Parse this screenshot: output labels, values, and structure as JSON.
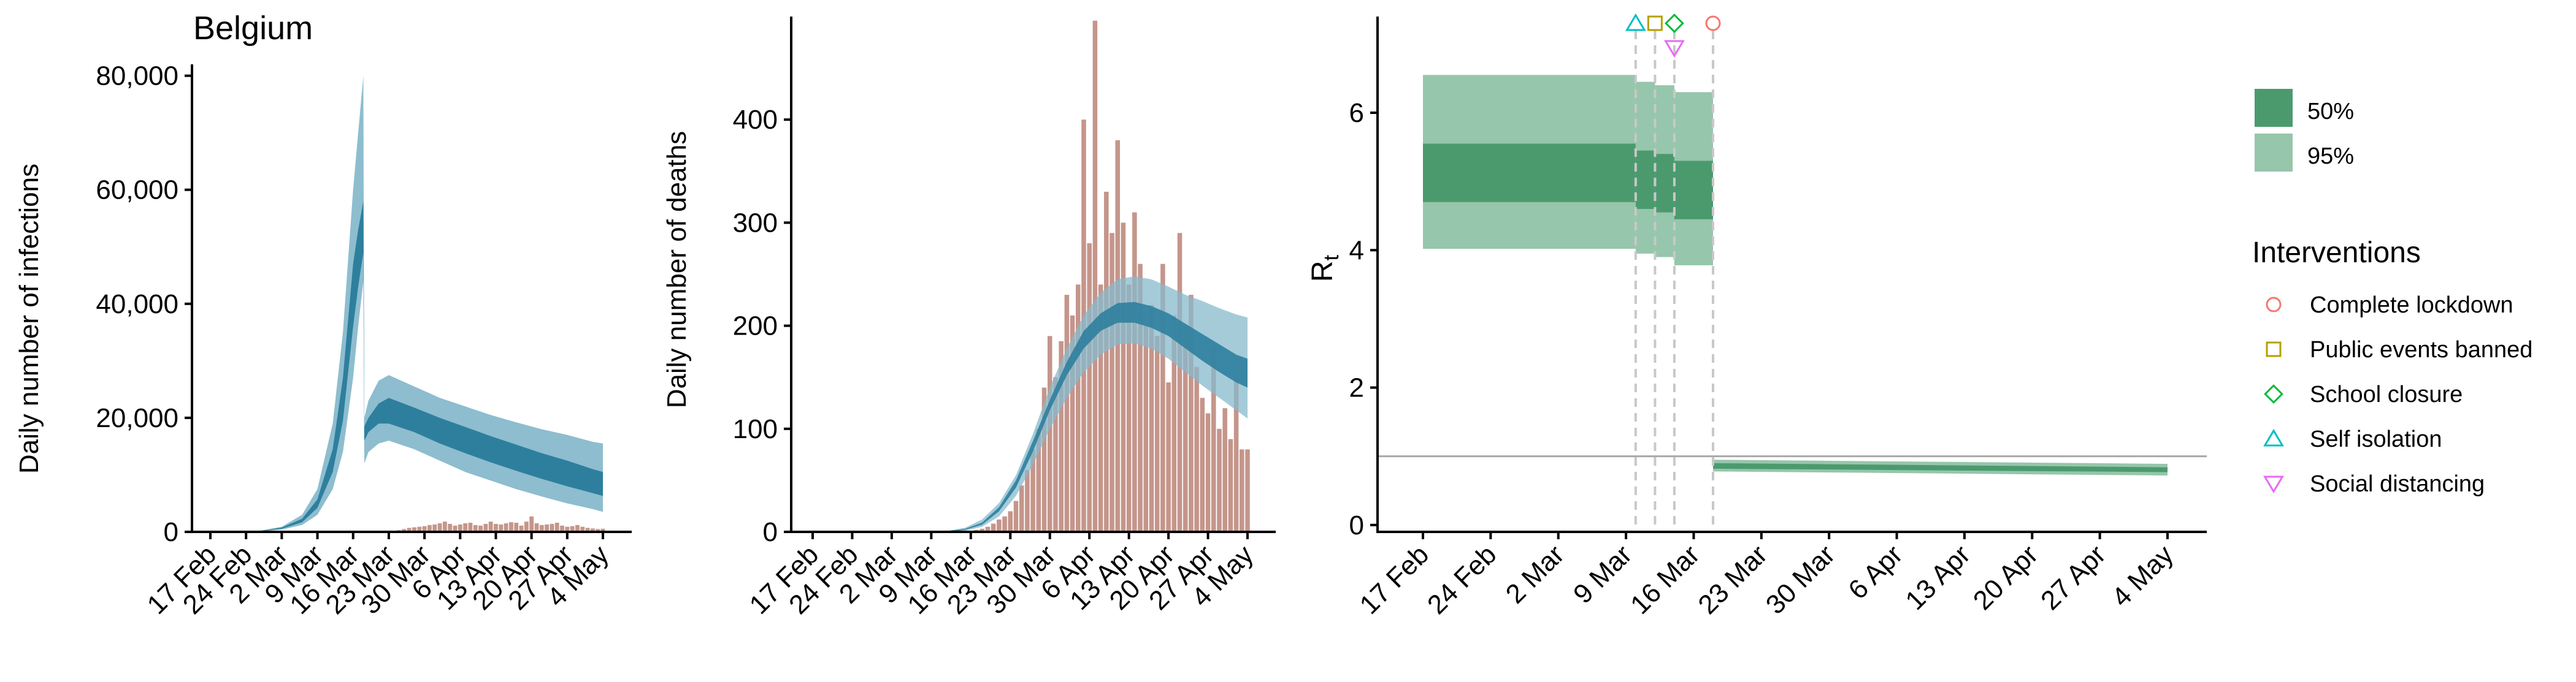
{
  "colors": {
    "infections_band_50": "#2e7f9d",
    "infections_band_95": "#87b9cc",
    "deaths_bars": "#c5958b",
    "rt_band_50": "#4b9a6e",
    "rt_band_95": "#96c6ab",
    "lockdown": "#f8766d",
    "public_events": "#b79f00",
    "school": "#00ba38",
    "self_isolation": "#00bfc4",
    "social_distancing": "#e76bf3"
  },
  "chart_data": [
    {
      "type": "area",
      "title": "Belgium",
      "ylabel": "Daily number of infections",
      "xlabel": "",
      "ylim": [
        0,
        82000
      ],
      "y_ticks": [
        0,
        20000,
        40000,
        60000,
        80000
      ],
      "y_tick_labels": [
        "0",
        "20,000",
        "40,000",
        "60,000",
        "80,000"
      ],
      "x_tick_labels": [
        "17 Feb",
        "24 Feb",
        "2 Mar",
        "9 Mar",
        "16 Mar",
        "23 Mar",
        "30 Mar",
        "6 Apr",
        "13 Apr",
        "20 Apr",
        "27 Apr",
        "4 May"
      ],
      "x_tick_day_index": [
        0,
        7,
        14,
        21,
        28,
        35,
        42,
        49,
        56,
        63,
        70,
        77
      ],
      "series": [
        {
          "band": "95%",
          "day_index": [
            0,
            5,
            10,
            14,
            18,
            21,
            24,
            26,
            28,
            29,
            30,
            30.2,
            31,
            33,
            35,
            40,
            45,
            50,
            55,
            60,
            65,
            70,
            75,
            77
          ],
          "lower": [
            0,
            20,
            100,
            400,
            1200,
            3000,
            7500,
            14000,
            27000,
            36000,
            44000,
            12000,
            14000,
            15500,
            16000,
            14500,
            12500,
            10500,
            9000,
            7500,
            6200,
            5000,
            4000,
            3500
          ],
          "upper": [
            0,
            40,
            250,
            900,
            3000,
            7500,
            19000,
            35000,
            60000,
            70000,
            80000,
            20000,
            23000,
            26500,
            27500,
            25500,
            23500,
            22000,
            20500,
            19200,
            18000,
            17000,
            15800,
            15500
          ]
        },
        {
          "band": "50%",
          "day_index": [
            0,
            5,
            10,
            14,
            18,
            21,
            24,
            26,
            28,
            29,
            30,
            30.2,
            31,
            33,
            35,
            40,
            45,
            50,
            55,
            60,
            65,
            70,
            75,
            77
          ],
          "lower": [
            0,
            25,
            150,
            550,
            1700,
            4200,
            10500,
            19500,
            36000,
            43000,
            49000,
            16000,
            17500,
            19000,
            19000,
            17500,
            15500,
            13800,
            12200,
            10700,
            9300,
            8000,
            6800,
            6300
          ],
          "upper": [
            0,
            32,
            200,
            750,
            2300,
            5700,
            14500,
            27000,
            47000,
            53000,
            58000,
            18500,
            20000,
            22500,
            23500,
            21800,
            20000,
            18400,
            16800,
            15300,
            13800,
            12500,
            11000,
            10500
          ]
        }
      ],
      "observed_cases_day_index": [
        35,
        36,
        37,
        38,
        39,
        40,
        41,
        42,
        43,
        44,
        45,
        46,
        47,
        48,
        49,
        50,
        51,
        52,
        53,
        54,
        55,
        56,
        57,
        58,
        59,
        60,
        61,
        62,
        63,
        64,
        65,
        66,
        67,
        68,
        69,
        70,
        71,
        72,
        73,
        74,
        75,
        76,
        77
      ],
      "observed_cases": [
        100,
        200,
        300,
        500,
        700,
        800,
        900,
        1000,
        1200,
        1300,
        1500,
        1800,
        1400,
        1100,
        1300,
        1500,
        1600,
        1200,
        1100,
        1400,
        1800,
        1400,
        1300,
        1500,
        1700,
        1600,
        1100,
        1800,
        2700,
        1500,
        1200,
        1300,
        1400,
        1600,
        1100,
        900,
        1000,
        1200,
        900,
        700,
        600,
        500,
        550
      ]
    },
    {
      "type": "bar",
      "ylabel": "Daily number of deaths",
      "xlabel": "",
      "ylim": [
        0,
        500
      ],
      "y_ticks": [
        0,
        100,
        200,
        300,
        400
      ],
      "y_tick_labels": [
        "0",
        "100",
        "200",
        "300",
        "400"
      ],
      "x_tick_labels": [
        "17 Feb",
        "24 Feb",
        "2 Mar",
        "9 Mar",
        "16 Mar",
        "23 Mar",
        "30 Mar",
        "6 Apr",
        "13 Apr",
        "20 Apr",
        "27 Apr",
        "4 May"
      ],
      "x_tick_day_index": [
        0,
        7,
        14,
        21,
        28,
        35,
        42,
        49,
        56,
        63,
        70,
        77
      ],
      "bars_day_index": [
        28,
        29,
        30,
        31,
        32,
        33,
        34,
        35,
        36,
        37,
        38,
        39,
        40,
        41,
        42,
        43,
        44,
        45,
        46,
        47,
        48,
        49,
        50,
        51,
        52,
        53,
        54,
        55,
        56,
        57,
        58,
        59,
        60,
        61,
        62,
        63,
        64,
        65,
        66,
        67,
        68,
        69,
        70,
        71,
        72,
        73,
        74,
        75,
        76,
        77
      ],
      "bars": [
        1,
        2,
        3,
        5,
        8,
        12,
        15,
        20,
        30,
        45,
        60,
        80,
        100,
        140,
        190,
        150,
        185,
        230,
        210,
        240,
        400,
        280,
        496,
        240,
        330,
        290,
        380,
        300,
        240,
        310,
        260,
        200,
        220,
        190,
        260,
        145,
        210,
        290,
        200,
        230,
        160,
        130,
        115,
        180,
        100,
        120,
        90,
        150,
        80,
        80
      ],
      "series": [
        {
          "band": "95%",
          "day_index": [
            0,
            5,
            10,
            14,
            18,
            21,
            24,
            27,
            30,
            33,
            36,
            39,
            42,
            45,
            48,
            51,
            54,
            57,
            60,
            63,
            66,
            69,
            72,
            75,
            77
          ],
          "lower": [
            0,
            0,
            0,
            0,
            0,
            0,
            0,
            1,
            5,
            15,
            35,
            65,
            100,
            130,
            155,
            172,
            182,
            183,
            178,
            168,
            155,
            142,
            130,
            118,
            110
          ],
          "upper": [
            0,
            0,
            0,
            0,
            0,
            0,
            1,
            4,
            12,
            28,
            55,
            95,
            140,
            178,
            210,
            232,
            245,
            248,
            245,
            238,
            230,
            224,
            217,
            211,
            208
          ]
        },
        {
          "band": "50%",
          "day_index": [
            0,
            5,
            10,
            14,
            18,
            21,
            24,
            27,
            30,
            33,
            36,
            39,
            42,
            45,
            48,
            51,
            54,
            57,
            60,
            63,
            66,
            69,
            72,
            75,
            77
          ],
          "lower": [
            0,
            0,
            0,
            0,
            0,
            0,
            0,
            2,
            7,
            20,
            43,
            78,
            118,
            152,
            178,
            195,
            203,
            203,
            198,
            190,
            178,
            166,
            155,
            145,
            140
          ],
          "upper": [
            0,
            0,
            0,
            0,
            0,
            0,
            1,
            3,
            9,
            24,
            50,
            88,
            128,
            165,
            195,
            212,
            222,
            223,
            219,
            212,
            202,
            192,
            182,
            172,
            168
          ]
        }
      ]
    },
    {
      "type": "area",
      "ylabel": "Rt",
      "ylabel_main": "R",
      "ylabel_sub": "t",
      "xlabel": "",
      "ylim": [
        -0.1,
        7.4
      ],
      "y_ticks": [
        0,
        2,
        4,
        6
      ],
      "y_tick_labels": [
        "0",
        "2",
        "4",
        "6"
      ],
      "reference_line": 1,
      "x_tick_labels": [
        "17 Feb",
        "24 Feb",
        "2 Mar",
        "9 Mar",
        "16 Mar",
        "23 Mar",
        "30 Mar",
        "6 Apr",
        "13 Apr",
        "20 Apr",
        "27 Apr",
        "4 May"
      ],
      "x_tick_day_index": [
        0,
        7,
        14,
        21,
        28,
        35,
        42,
        49,
        56,
        63,
        70,
        77
      ],
      "segments": [
        {
          "start": 0,
          "end": 22,
          "lo95": 4.02,
          "hi95": 6.55,
          "lo50": 4.7,
          "hi50": 5.55
        },
        {
          "start": 22,
          "end": 24,
          "lo95": 3.95,
          "hi95": 6.45,
          "lo50": 4.6,
          "hi50": 5.45
        },
        {
          "start": 24,
          "end": 26,
          "lo95": 3.9,
          "hi95": 6.4,
          "lo50": 4.55,
          "hi50": 5.4
        },
        {
          "start": 26,
          "end": 30,
          "lo95": 3.78,
          "hi95": 6.3,
          "lo50": 4.45,
          "hi50": 5.3
        }
      ],
      "post_lockdown": {
        "start": 30,
        "end": 77,
        "start_lo95": 0.78,
        "start_hi95": 0.95,
        "end_lo95": 0.72,
        "end_hi95": 0.89,
        "start_lo50": 0.82,
        "start_hi50": 0.9,
        "end_lo50": 0.77,
        "end_hi50": 0.84
      },
      "legend_bands": [
        "50%",
        "95%"
      ],
      "interventions_title": "Interventions",
      "interventions": [
        {
          "name": "Complete lockdown",
          "marker": "circle",
          "day_index": 30
        },
        {
          "name": "Public events banned",
          "marker": "square",
          "day_index": 24
        },
        {
          "name": "School closure",
          "marker": "diamond",
          "day_index": 26
        },
        {
          "name": "Self isolation",
          "marker": "triangle-up",
          "day_index": 22
        },
        {
          "name": "Social distancing",
          "marker": "triangle-down",
          "day_index": 26
        }
      ]
    }
  ]
}
